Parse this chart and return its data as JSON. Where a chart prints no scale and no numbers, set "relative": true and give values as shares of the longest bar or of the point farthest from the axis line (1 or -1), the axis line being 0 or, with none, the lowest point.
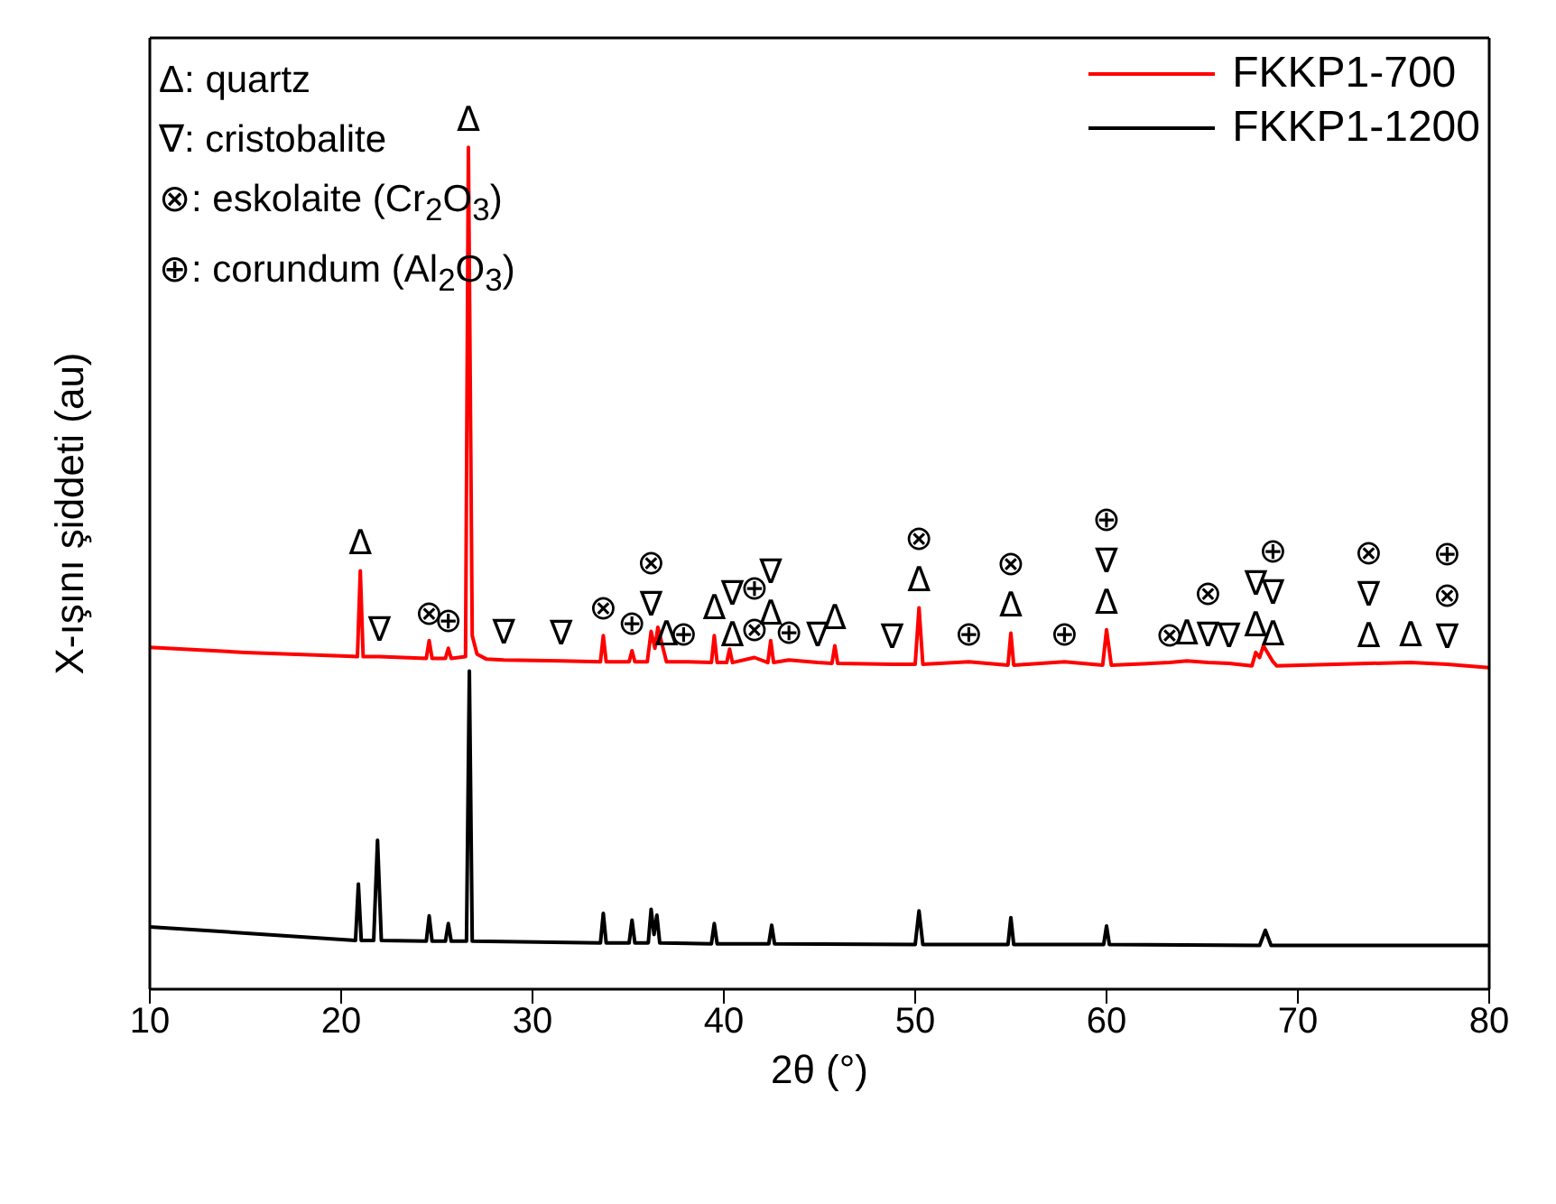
{
  "chart_data": {
    "type": "line",
    "relative": true,
    "xlabel": "2θ (°)",
    "ylabel": "X-ışını şiddeti (au)",
    "xlim": [
      10,
      80
    ],
    "xticks": [
      10,
      20,
      30,
      40,
      50,
      60,
      70,
      80
    ],
    "tick_labels": "x",
    "grid": false,
    "legend": "top right",
    "marker": "none",
    "line_style": "solid",
    "series": [
      {
        "name": "FKKP1-700",
        "color": "#ff0000",
        "x": [
          10,
          15,
          20,
          20.85,
          21.0,
          21.15,
          22.0,
          24.45,
          24.6,
          24.75,
          25.45,
          25.6,
          25.75,
          26.5,
          26.65,
          26.85,
          27.1,
          27.6,
          28.5,
          31.5,
          33.55,
          33.7,
          33.85,
          35.05,
          35.2,
          35.35,
          36.0,
          36.2,
          36.4,
          36.55,
          37.0,
          37.9,
          39.35,
          39.5,
          39.65,
          40.15,
          40.3,
          40.45,
          41.6,
          42.3,
          42.45,
          42.6,
          43.4,
          44.9,
          45.65,
          45.8,
          45.95,
          48.8,
          50.0,
          50.2,
          50.4,
          52.8,
          54.85,
          55.0,
          55.15,
          57.8,
          59.8,
          60.0,
          60.25,
          63.3,
          64.2,
          65.3,
          66.4,
          67.6,
          67.8,
          68.0,
          68.2,
          68.7,
          68.9,
          73.7,
          75.9,
          77.8,
          80
        ],
        "values": [
          0.406,
          0.4,
          0.396,
          0.395,
          0.497,
          0.395,
          0.395,
          0.393,
          0.414,
          0.393,
          0.393,
          0.405,
          0.393,
          0.395,
          1.0,
          0.42,
          0.398,
          0.392,
          0.391,
          0.39,
          0.389,
          0.42,
          0.389,
          0.389,
          0.402,
          0.389,
          0.389,
          0.425,
          0.405,
          0.43,
          0.389,
          0.389,
          0.388,
          0.42,
          0.388,
          0.388,
          0.404,
          0.388,
          0.394,
          0.388,
          0.414,
          0.388,
          0.391,
          0.388,
          0.387,
          0.408,
          0.387,
          0.386,
          0.386,
          0.453,
          0.386,
          0.389,
          0.385,
          0.423,
          0.385,
          0.389,
          0.385,
          0.427,
          0.385,
          0.388,
          0.39,
          0.388,
          0.387,
          0.384,
          0.4,
          0.394,
          0.408,
          0.389,
          0.384,
          0.387,
          0.388,
          0.386,
          0.382
        ]
      },
      {
        "name": "FKKP1-1200",
        "color": "#000000",
        "x": [
          10,
          20.75,
          20.9,
          21.05,
          21.7,
          21.9,
          22.1,
          24.45,
          24.6,
          24.75,
          25.45,
          25.6,
          25.75,
          26.55,
          26.7,
          26.85,
          33.55,
          33.7,
          33.85,
          35.05,
          35.2,
          35.35,
          36.05,
          36.2,
          36.35,
          36.5,
          36.65,
          39.35,
          39.5,
          39.65,
          42.35,
          42.5,
          42.65,
          50.0,
          50.2,
          50.4,
          54.85,
          55.0,
          55.15,
          59.85,
          60.0,
          60.15,
          68.0,
          68.3,
          68.6,
          80
        ],
        "values": [
          0.074,
          0.058,
          0.125,
          0.058,
          0.058,
          0.177,
          0.058,
          0.057,
          0.087,
          0.057,
          0.057,
          0.078,
          0.057,
          0.057,
          0.378,
          0.057,
          0.055,
          0.09,
          0.055,
          0.055,
          0.082,
          0.055,
          0.055,
          0.095,
          0.065,
          0.088,
          0.055,
          0.054,
          0.078,
          0.054,
          0.054,
          0.076,
          0.054,
          0.053,
          0.093,
          0.053,
          0.053,
          0.085,
          0.053,
          0.053,
          0.075,
          0.053,
          0.052,
          0.07,
          0.052,
          0.052
        ]
      }
    ],
    "annotations": [
      "Δ: quartz",
      "∇: cristobalite",
      "⊗: eskolaite (Cr$_{2}$O$_{3}$)",
      "⊕: corundum (Al$_{2}$O$_{3}$)",
      {
        "text": "Δ",
        "x": 21.0,
        "y": 0.497
      },
      {
        "text": "∇",
        "x": 22.0,
        "y": 0.395
      },
      {
        "text": "⊗",
        "x": 24.6,
        "y": 0.414
      },
      {
        "text": "⊕",
        "x": 25.6,
        "y": 0.405
      },
      {
        "text": "Δ",
        "x": 26.65,
        "y": 1.0
      },
      {
        "text": "∇",
        "x": 28.5,
        "y": 0.391
      },
      {
        "text": "∇",
        "x": 31.5,
        "y": 0.39
      },
      {
        "text": "⊗",
        "x": 33.7,
        "y": 0.42
      },
      {
        "text": "⊕",
        "x": 35.2,
        "y": 0.402
      },
      {
        "text": "∇",
        "x": 36.2,
        "y": 0.425
      },
      {
        "text": "⊗",
        "x": 36.2,
        "y": 0.425
      },
      {
        "text": "Δ",
        "x": 37.0,
        "y": 0.389
      },
      {
        "text": "⊕",
        "x": 37.9,
        "y": 0.389
      },
      {
        "text": "Δ",
        "x": 39.5,
        "y": 0.42
      },
      {
        "text": "Δ",
        "x": 40.45,
        "y": 0.388
      },
      {
        "text": "∇",
        "x": 40.45,
        "y": 0.388
      },
      {
        "text": "⊗",
        "x": 41.6,
        "y": 0.394
      },
      {
        "text": "⊕",
        "x": 41.6,
        "y": 0.394
      },
      {
        "text": "Δ",
        "x": 42.45,
        "y": 0.414
      },
      {
        "text": "∇",
        "x": 42.45,
        "y": 0.414
      },
      {
        "text": "⊕",
        "x": 43.4,
        "y": 0.391
      },
      {
        "text": "∇",
        "x": 44.9,
        "y": 0.388
      },
      {
        "text": "Δ",
        "x": 45.8,
        "y": 0.408
      },
      {
        "text": "∇",
        "x": 48.8,
        "y": 0.386
      },
      {
        "text": "Δ",
        "x": 50.2,
        "y": 0.453
      },
      {
        "text": "⊗",
        "x": 50.2,
        "y": 0.453
      },
      {
        "text": "⊕",
        "x": 52.8,
        "y": 0.389
      },
      {
        "text": "Δ",
        "x": 55.0,
        "y": 0.423
      },
      {
        "text": "⊗",
        "x": 55.0,
        "y": 0.423
      },
      {
        "text": "⊕",
        "x": 57.8,
        "y": 0.389
      },
      {
        "text": "Δ",
        "x": 60.0,
        "y": 0.427
      },
      {
        "text": "∇",
        "x": 60.0,
        "y": 0.427
      },
      {
        "text": "⊕",
        "x": 60.0,
        "y": 0.427
      },
      {
        "text": "⊗",
        "x": 63.3,
        "y": 0.388
      },
      {
        "text": "Δ",
        "x": 64.2,
        "y": 0.39
      },
      {
        "text": "∇",
        "x": 65.3,
        "y": 0.388
      },
      {
        "text": "⊗",
        "x": 65.3,
        "y": 0.388
      },
      {
        "text": "∇",
        "x": 66.4,
        "y": 0.387
      },
      {
        "text": "Δ",
        "x": 67.8,
        "y": 0.4
      },
      {
        "text": "∇",
        "x": 67.8,
        "y": 0.4
      },
      {
        "text": "Δ",
        "x": 68.7,
        "y": 0.389
      },
      {
        "text": "∇",
        "x": 68.7,
        "y": 0.389
      },
      {
        "text": "⊕",
        "x": 68.7,
        "y": 0.389
      },
      {
        "text": "Δ",
        "x": 73.7,
        "y": 0.387
      },
      {
        "text": "∇",
        "x": 73.7,
        "y": 0.387
      },
      {
        "text": "⊗",
        "x": 73.7,
        "y": 0.387
      },
      {
        "text": "Δ",
        "x": 75.9,
        "y": 0.388
      },
      {
        "text": "∇",
        "x": 77.8,
        "y": 0.386
      },
      {
        "text": "⊗",
        "x": 77.8,
        "y": 0.386
      },
      {
        "text": "⊕",
        "x": 77.8,
        "y": 0.386
      }
    ]
  }
}
